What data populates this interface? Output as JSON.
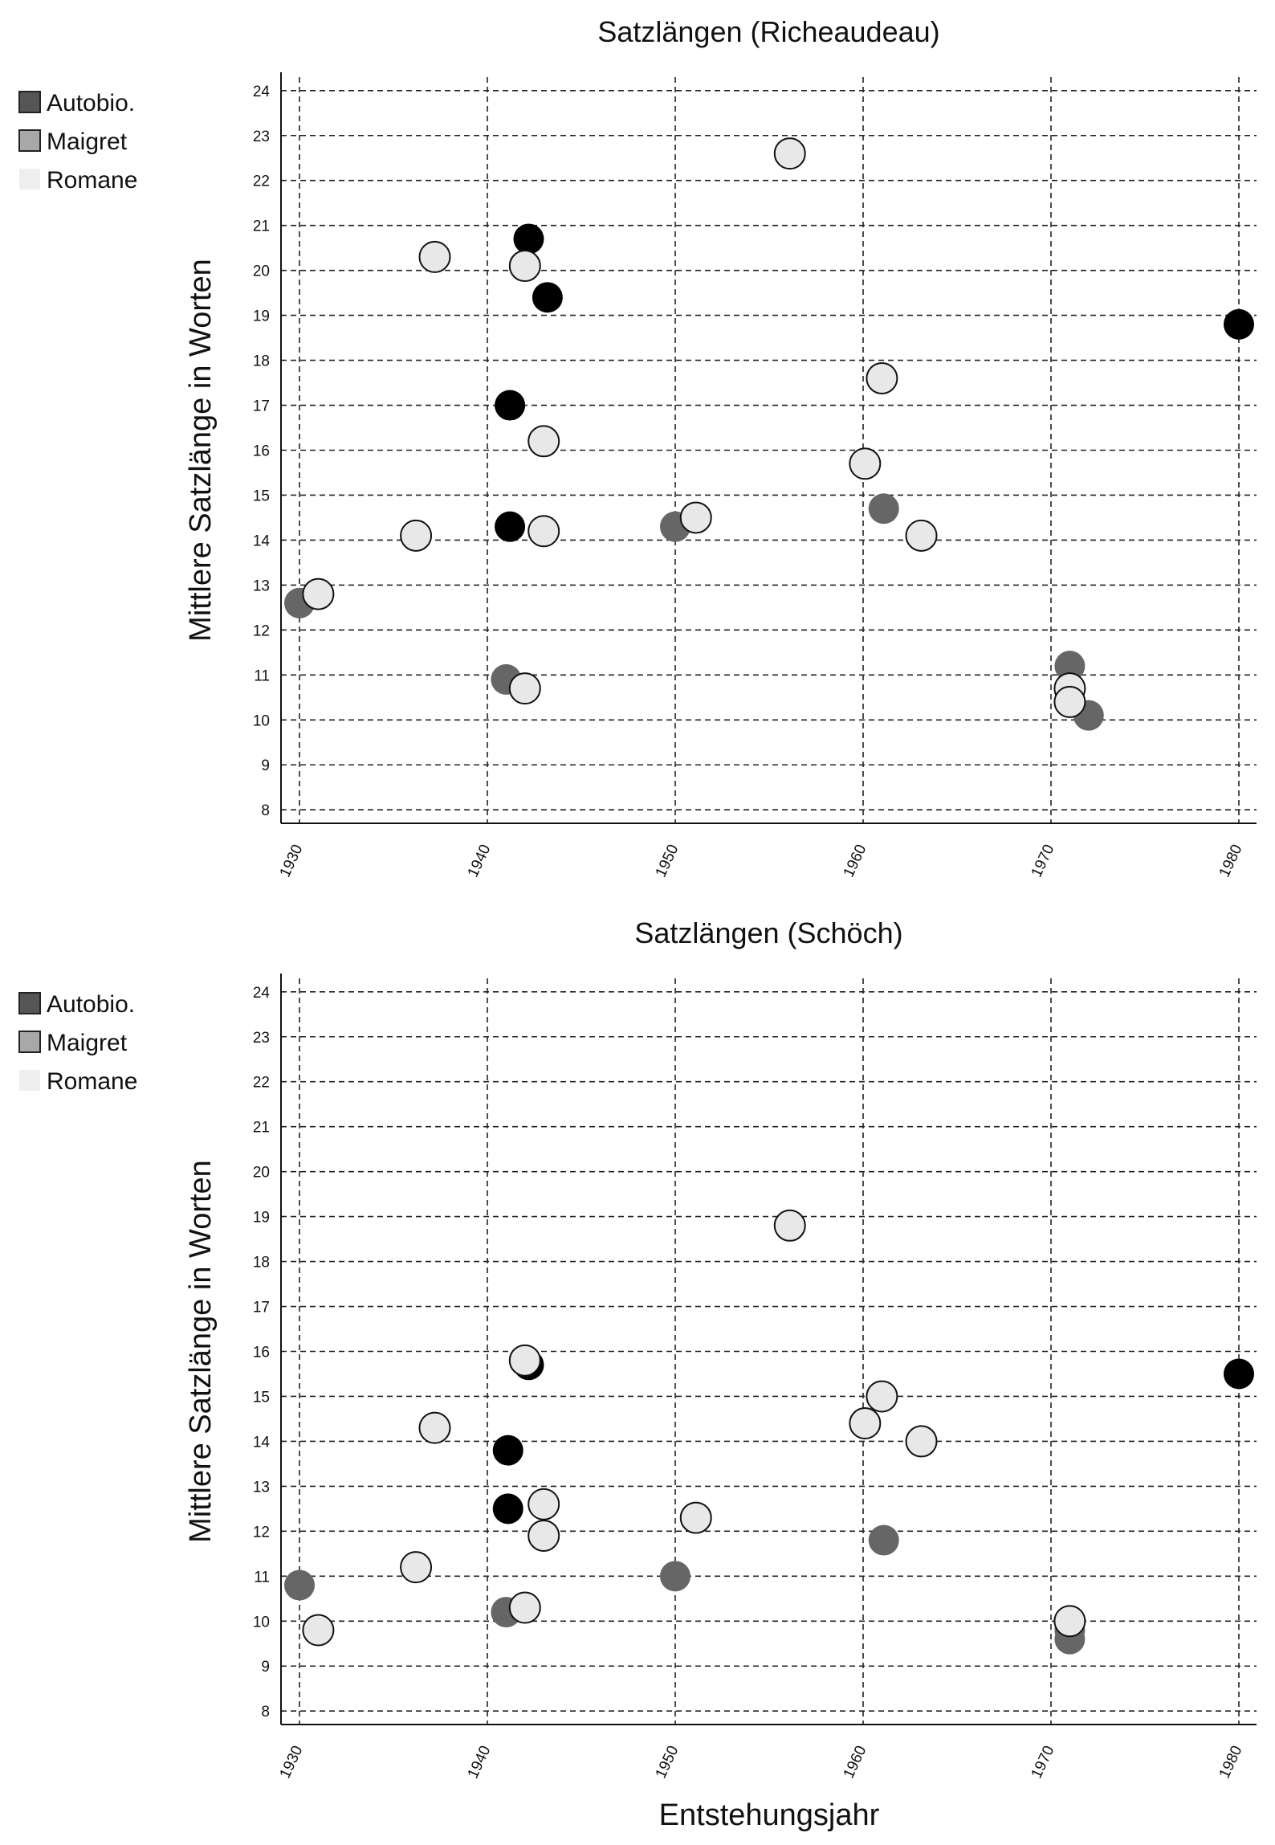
{
  "chart_data": [
    {
      "type": "scatter",
      "title": "Satzlängen (Richeaudeau)",
      "xlabel": "",
      "ylabel": "Mittlere Satzlänge in Worten",
      "xlim": [
        1930,
        1981
      ],
      "ylim": [
        7.7,
        24.3
      ],
      "xticks": [
        "1930",
        "1940",
        "1950",
        "1960",
        "1970",
        "1980"
      ],
      "yticks": [
        "8",
        "9",
        "10",
        "11",
        "12",
        "13",
        "14",
        "15",
        "16",
        "17",
        "18",
        "19",
        "20",
        "21",
        "22",
        "23",
        "24"
      ],
      "grid": true,
      "legend_position": "top-left",
      "series": [
        {
          "name": "Autobio.",
          "marker_color": "#000000",
          "legend_color": "#555555",
          "points": [
            {
              "x": 1942.2,
              "y": 20.7
            },
            {
              "x": 1943.2,
              "y": 19.4
            },
            {
              "x": 1941.2,
              "y": 17.0
            },
            {
              "x": 1941.2,
              "y": 14.3
            },
            {
              "x": 1980.0,
              "y": 18.8
            }
          ]
        },
        {
          "name": "Maigret",
          "marker_color": "#666666",
          "legend_color": "#a8a8a8",
          "points": [
            {
              "x": 1930.0,
              "y": 12.6
            },
            {
              "x": 1941.0,
              "y": 10.9
            },
            {
              "x": 1950.0,
              "y": 14.3
            },
            {
              "x": 1961.1,
              "y": 14.7
            },
            {
              "x": 1971.0,
              "y": 11.2
            },
            {
              "x": 1972.0,
              "y": 10.1
            }
          ]
        },
        {
          "name": "Romane",
          "marker_color": "#e8e8e8",
          "legend_color": "#eeeeee",
          "points": [
            {
              "x": 1931.0,
              "y": 12.8
            },
            {
              "x": 1936.2,
              "y": 14.1
            },
            {
              "x": 1937.2,
              "y": 20.3
            },
            {
              "x": 1942.0,
              "y": 20.1
            },
            {
              "x": 1942.0,
              "y": 10.7
            },
            {
              "x": 1943.0,
              "y": 16.2
            },
            {
              "x": 1943.0,
              "y": 14.2
            },
            {
              "x": 1951.1,
              "y": 14.5
            },
            {
              "x": 1956.1,
              "y": 22.6
            },
            {
              "x": 1960.1,
              "y": 15.7
            },
            {
              "x": 1961.0,
              "y": 17.6
            },
            {
              "x": 1963.1,
              "y": 14.1
            },
            {
              "x": 1971.0,
              "y": 10.7
            },
            {
              "x": 1971.0,
              "y": 10.4
            }
          ]
        }
      ]
    },
    {
      "type": "scatter",
      "title": "Satzlängen (Schöch)",
      "xlabel": "Entstehungsjahr",
      "ylabel": "Mittlere Satzlänge in Worten",
      "xlim": [
        1930,
        1981
      ],
      "ylim": [
        7.7,
        24.3
      ],
      "xticks": [
        "1930",
        "1940",
        "1950",
        "1960",
        "1970",
        "1980"
      ],
      "yticks": [
        "8",
        "9",
        "10",
        "11",
        "12",
        "13",
        "14",
        "15",
        "16",
        "17",
        "18",
        "19",
        "20",
        "21",
        "22",
        "23",
        "24"
      ],
      "grid": true,
      "legend_position": "top-left",
      "series": [
        {
          "name": "Autobio.",
          "marker_color": "#000000",
          "legend_color": "#555555",
          "points": [
            {
              "x": 1942.2,
              "y": 15.7
            },
            {
              "x": 1941.1,
              "y": 13.8
            },
            {
              "x": 1941.1,
              "y": 12.5
            },
            {
              "x": 1980.0,
              "y": 15.5
            }
          ]
        },
        {
          "name": "Maigret",
          "marker_color": "#666666",
          "legend_color": "#a8a8a8",
          "points": [
            {
              "x": 1930.0,
              "y": 10.8
            },
            {
              "x": 1941.0,
              "y": 10.2
            },
            {
              "x": 1950.0,
              "y": 11.0
            },
            {
              "x": 1961.1,
              "y": 11.8
            },
            {
              "x": 1971.0,
              "y": 9.6
            },
            {
              "x": 1971.0,
              "y": 9.8
            }
          ]
        },
        {
          "name": "Romane",
          "marker_color": "#e8e8e8",
          "legend_color": "#eeeeee",
          "points": [
            {
              "x": 1931.0,
              "y": 9.8
            },
            {
              "x": 1936.2,
              "y": 11.2
            },
            {
              "x": 1937.2,
              "y": 14.3
            },
            {
              "x": 1942.0,
              "y": 15.8
            },
            {
              "x": 1942.0,
              "y": 10.3
            },
            {
              "x": 1943.0,
              "y": 12.6
            },
            {
              "x": 1943.0,
              "y": 11.9
            },
            {
              "x": 1951.1,
              "y": 12.3
            },
            {
              "x": 1956.1,
              "y": 18.8
            },
            {
              "x": 1960.1,
              "y": 14.4
            },
            {
              "x": 1961.0,
              "y": 15.0
            },
            {
              "x": 1963.1,
              "y": 14.0
            },
            {
              "x": 1971.0,
              "y": 10.0
            }
          ]
        }
      ]
    }
  ]
}
